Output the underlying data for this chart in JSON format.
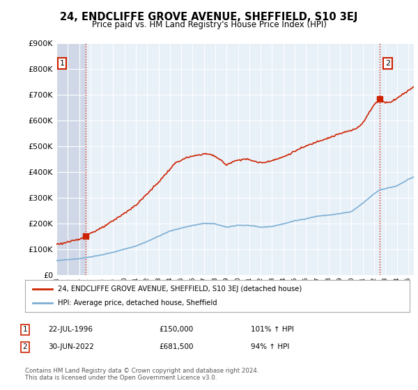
{
  "title": "24, ENDCLIFFE GROVE AVENUE, SHEFFIELD, S10 3EJ",
  "subtitle": "Price paid vs. HM Land Registry's House Price Index (HPI)",
  "legend_line1": "24, ENDCLIFFE GROVE AVENUE, SHEFFIELD, S10 3EJ (detached house)",
  "legend_line2": "HPI: Average price, detached house, Sheffield",
  "sale1_date": "22-JUL-1996",
  "sale1_price": "£150,000",
  "sale1_hpi": "101% ↑ HPI",
  "sale1_year": 1996.55,
  "sale1_value": 150000,
  "sale2_date": "30-JUN-2022",
  "sale2_price": "£681,500",
  "sale2_hpi": "94% ↑ HPI",
  "sale2_year": 2022.5,
  "sale2_value": 681500,
  "hpi_color": "#7bafd4",
  "price_color": "#cc2200",
  "marker_color": "#cc2200",
  "background_color": "#ffffff",
  "plot_bg_color": "#e8f0f8",
  "grid_color": "#ffffff",
  "hatch_color": "#d0d8e8",
  "footer": "Contains HM Land Registry data © Crown copyright and database right 2024.\nThis data is licensed under the Open Government Licence v3.0.",
  "xmin": 1994.0,
  "xmax": 2025.5,
  "ymin": 0,
  "ymax": 900000
}
